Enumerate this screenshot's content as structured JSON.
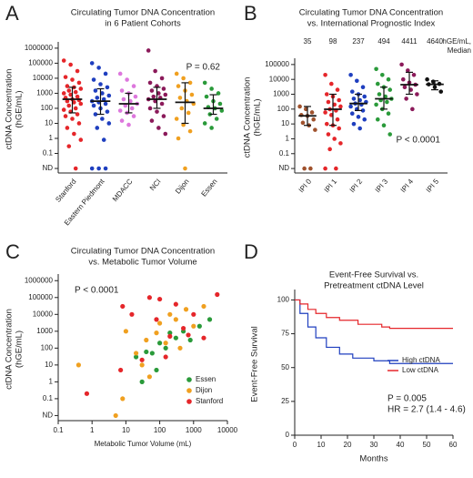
{
  "chart_data": [
    {
      "type": "strip",
      "label": "A",
      "title": [
        "Circulating Tumor DNA Concentration",
        "in 6 Patient Cohorts"
      ],
      "y_label": [
        "ctDNA Concentration",
        "(hGE/mL)"
      ],
      "categories": [
        "Stanford",
        "Eastern Piedmont",
        "MDACC",
        "NCI",
        "Dijon",
        "Essen"
      ],
      "colors": [
        "#e5262a",
        "#1f3fbf",
        "#dd77dd",
        "#8b1a5a",
        "#f0a020",
        "#2a9a3a"
      ],
      "points": [
        [
          150000,
          80000,
          30000,
          12000,
          8000,
          5000,
          3000,
          2500,
          2000,
          1500,
          1200,
          1000,
          800,
          600,
          500,
          400,
          350,
          300,
          250,
          200,
          150,
          100,
          80,
          60,
          40,
          30,
          20,
          10,
          5,
          2,
          0.8,
          0.3,
          0.01
        ],
        [
          100000,
          50000,
          20000,
          8000,
          4000,
          2500,
          1500,
          1000,
          700,
          500,
          400,
          300,
          250,
          200,
          150,
          100,
          60,
          40,
          20,
          10,
          5,
          0.8,
          0.01,
          0.01,
          0.01
        ],
        [
          20000,
          8000,
          3000,
          1500,
          1000,
          600,
          400,
          300,
          200,
          150,
          100,
          70,
          50,
          30,
          15,
          8
        ],
        [
          700000,
          30000,
          10000,
          5000,
          3000,
          2000,
          1500,
          1000,
          800,
          600,
          500,
          400,
          300,
          200,
          100,
          60,
          30,
          15,
          5,
          2
        ],
        [
          20000,
          10000,
          5000,
          3000,
          1500,
          800,
          500,
          300,
          200,
          100,
          50,
          20,
          8,
          3,
          1,
          0.01
        ],
        [
          5000,
          2000,
          1000,
          600,
          300,
          200,
          120,
          100,
          70,
          40,
          20,
          10,
          5
        ]
      ],
      "medians": [
        400,
        300,
        200,
        400,
        250,
        100
      ],
      "ranges": [
        [
          50,
          2500
        ],
        [
          40,
          2000
        ],
        [
          50,
          1000
        ],
        [
          100,
          2500
        ],
        [
          10,
          5000
        ],
        [
          40,
          800
        ]
      ],
      "ylog": true,
      "ylim": [
        0.005,
        1500000
      ],
      "yticks": [
        {
          "value": 0.01,
          "label": "ND"
        },
        0.1,
        1,
        10,
        100,
        1000,
        10000,
        100000,
        1000000
      ],
      "annotation": "P = 0.62"
    },
    {
      "type": "strip",
      "label": "B",
      "title": [
        "Circulating Tumor DNA Concentration",
        "vs. International Prognostic Index"
      ],
      "y_label": [
        "ctDNA Concentration",
        "(hGE/mL)"
      ],
      "categories": [
        "IPI 0",
        "IPI 1",
        "IPI 2",
        "IPI 3",
        "IPI 4",
        "IPI 5"
      ],
      "colors": [
        "#a0522d",
        "#e5262a",
        "#1f3fbf",
        "#2a9a3a",
        "#8b1a5a",
        "#111111"
      ],
      "points": [
        [
          150,
          100,
          60,
          40,
          35,
          20,
          12,
          8,
          4,
          0.01,
          0.01
        ],
        [
          20000,
          5000,
          2000,
          1000,
          700,
          400,
          300,
          200,
          150,
          98,
          80,
          60,
          40,
          20,
          10,
          8,
          5,
          2,
          1,
          0.5,
          0.2,
          0.01,
          0.01
        ],
        [
          20000,
          8000,
          3000,
          1500,
          1000,
          700,
          500,
          400,
          300,
          237,
          200,
          150,
          100,
          80,
          50,
          30,
          20,
          10,
          5
        ],
        [
          50000,
          20000,
          10000,
          5000,
          3000,
          2000,
          1000,
          700,
          494,
          400,
          300,
          200,
          100,
          50,
          20,
          8,
          2
        ],
        [
          100000,
          40000,
          20000,
          10000,
          6000,
          4411,
          3000,
          2000,
          1000,
          500,
          100
        ],
        [
          10000,
          7000,
          5000,
          4640,
          3000,
          1500
        ]
      ],
      "medians": [
        35,
        98,
        237,
        494,
        4411,
        4640
      ],
      "show_medians": true,
      "median_note": [
        "hGE/mL,",
        "Median"
      ],
      "ranges": [
        [
          8,
          150
        ],
        [
          8,
          1000
        ],
        [
          80,
          1000
        ],
        [
          100,
          3000
        ],
        [
          1000,
          30000
        ],
        [
          2000,
          8000
        ]
      ],
      "ylog": true,
      "ylim": [
        0.005,
        150000
      ],
      "yticks": [
        {
          "value": 0.01,
          "label": "ND"
        },
        0.1,
        1,
        10,
        100,
        1000,
        10000,
        100000
      ],
      "annotation": "P < 0.0001"
    },
    {
      "type": "scatter",
      "label": "C",
      "title": [
        "Circulating Tumor DNA Concentration",
        "vs. Metabolic Tumor Volume"
      ],
      "y_label": [
        "ctDNA Concentration",
        "(hGE/mL)"
      ],
      "x_label": "Metabolic Tumor Volume (mL)",
      "xlog": true,
      "ylog": true,
      "xlim": [
        0.1,
        10000
      ],
      "xticks": [
        0.1,
        1,
        10,
        100,
        1000,
        10000
      ],
      "ylim": [
        0.005,
        1500000
      ],
      "yticks": [
        {
          "value": 0.01,
          "label": "ND"
        },
        0.1,
        1,
        10,
        100,
        1000,
        10000,
        100000,
        1000000
      ],
      "series": [
        {
          "name": "Essen",
          "color": "#2a9a3a",
          "x": [
            20,
            30,
            40,
            60,
            80,
            100,
            150,
            200,
            300,
            500,
            800,
            1500,
            3000
          ],
          "values": [
            30,
            1,
            60,
            50,
            5,
            200,
            100,
            800,
            400,
            1000,
            300,
            2000,
            5000
          ]
        },
        {
          "name": "Dijon",
          "color": "#f0a020",
          "x": [
            0.4,
            5,
            8,
            10,
            20,
            30,
            40,
            50,
            80,
            100,
            150,
            200,
            300,
            400,
            600,
            1000,
            2000
          ],
          "values": [
            10,
            0.01,
            0.1,
            1000,
            50,
            10,
            300,
            2,
            800,
            3000,
            200,
            10000,
            5000,
            100,
            20000,
            2000,
            30000
          ]
        },
        {
          "name": "Stanford",
          "color": "#e5262a",
          "x": [
            0.7,
            7,
            8,
            15,
            30,
            50,
            80,
            100,
            150,
            200,
            300,
            500,
            700,
            1000,
            2000,
            5000
          ],
          "values": [
            0.2,
            5,
            30000,
            10000,
            20,
            100000,
            5000,
            80000,
            30,
            500,
            40000,
            1500,
            600,
            10000,
            400,
            150000
          ]
        }
      ],
      "legend": "lower right",
      "annotation": "P < 0.0001"
    },
    {
      "type": "step",
      "label": "D",
      "title": [
        "Event-Free Survival vs.",
        "Pretreatment ctDNA Level"
      ],
      "y_label": [
        "Event-Free Survival"
      ],
      "x_label": "Months",
      "xlim": [
        0,
        60
      ],
      "xticks": [
        0,
        10,
        20,
        30,
        40,
        50,
        60
      ],
      "ylim": [
        0,
        105
      ],
      "yticks": [
        0,
        25,
        50,
        75,
        100
      ],
      "series": [
        {
          "name": "High ctDNA",
          "color": "#1f3fbf",
          "x": [
            0,
            2,
            5,
            8,
            12,
            17,
            22,
            30,
            36,
            60
          ],
          "values": [
            100,
            90,
            80,
            72,
            65,
            60,
            57,
            55,
            53,
            53
          ]
        },
        {
          "name": "Low ctDNA",
          "color": "#e5262a",
          "x": [
            0,
            2,
            5,
            8,
            12,
            17,
            24,
            33,
            36,
            60
          ],
          "values": [
            100,
            97,
            93,
            90,
            87,
            85,
            82,
            80,
            79,
            79
          ]
        }
      ],
      "legend": "lower right",
      "annotations": [
        "P = 0.005",
        "HR = 2.7 (1.4 - 4.6)"
      ]
    }
  ]
}
